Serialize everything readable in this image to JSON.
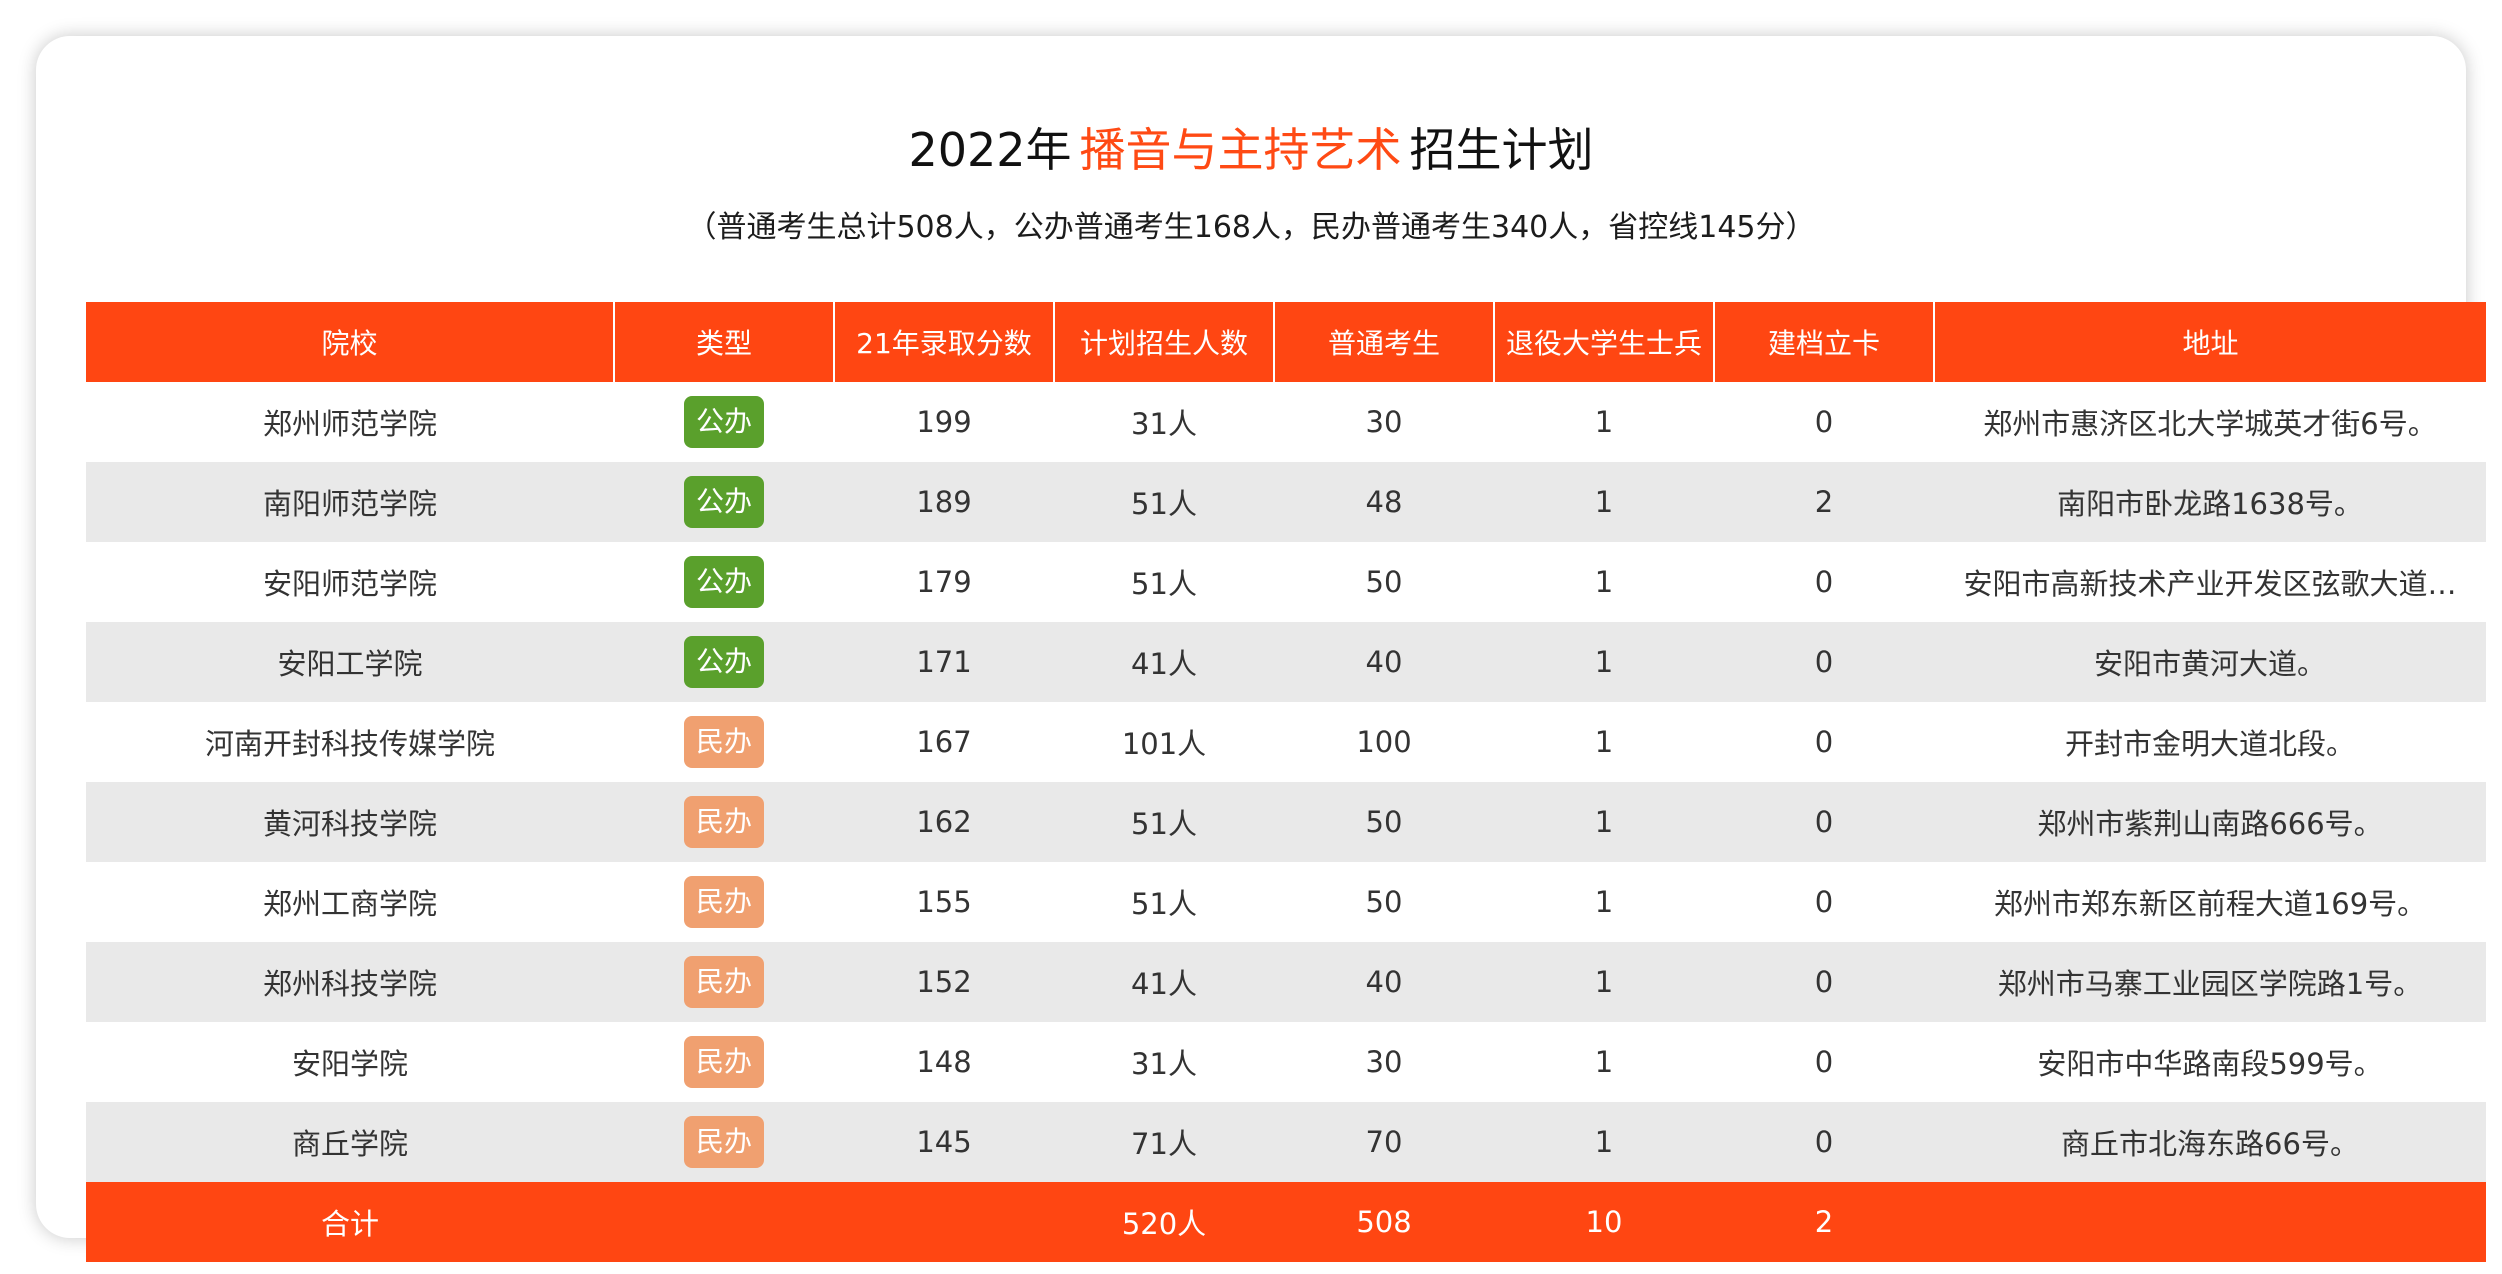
{
  "header": {
    "title_prefix": "2022年",
    "title_highlight": "播音与主持艺术",
    "title_suffix": "招生计划",
    "subtitle": "（普通考生总计508人，公办普通考生168人，民办普通考生340人，省控线145分）"
  },
  "colors": {
    "accent": "#ff4612",
    "public_badge": "#5aa02c",
    "private_badge": "#f0a070",
    "school_link": "#1a1adc"
  },
  "table": {
    "columns": [
      "院校",
      "类型",
      "21年录取分数",
      "计划招生人数",
      "普通考生",
      "退役大学生士兵",
      "建档立卡",
      "地址"
    ],
    "rows": [
      {
        "school": "郑州师范学院",
        "type": "公办",
        "kind": "public",
        "score": "199",
        "plan": "31人",
        "regular": "30",
        "veteran": "1",
        "poverty": "0",
        "address": "郑州市惠济区北大学城英才街6号。"
      },
      {
        "school": "南阳师范学院",
        "type": "公办",
        "kind": "public",
        "score": "189",
        "plan": "51人",
        "regular": "48",
        "veteran": "1",
        "poverty": "2",
        "address": "南阳市卧龙路1638号。"
      },
      {
        "school": "安阳师范学院",
        "type": "公办",
        "kind": "public",
        "score": "179",
        "plan": "51人",
        "regular": "50",
        "veteran": "1",
        "poverty": "0",
        "address": "安阳市高新技术产业开发区弦歌大道…"
      },
      {
        "school": "安阳工学院",
        "type": "公办",
        "kind": "public",
        "score": "171",
        "plan": "41人",
        "regular": "40",
        "veteran": "1",
        "poverty": "0",
        "address": "安阳市黄河大道。"
      },
      {
        "school": "河南开封科技传媒学院",
        "type": "民办",
        "kind": "private",
        "score": "167",
        "plan": "101人",
        "regular": "100",
        "veteran": "1",
        "poverty": "0",
        "address": "开封市金明大道北段。"
      },
      {
        "school": "黄河科技学院",
        "type": "民办",
        "kind": "private",
        "score": "162",
        "plan": "51人",
        "regular": "50",
        "veteran": "1",
        "poverty": "0",
        "address": "郑州市紫荆山南路666号。"
      },
      {
        "school": "郑州工商学院",
        "type": "民办",
        "kind": "private",
        "score": "155",
        "plan": "51人",
        "regular": "50",
        "veteran": "1",
        "poverty": "0",
        "address": "郑州市郑东新区前程大道169号。"
      },
      {
        "school": "郑州科技学院",
        "type": "民办",
        "kind": "private",
        "score": "152",
        "plan": "41人",
        "regular": "40",
        "veteran": "1",
        "poverty": "0",
        "address": "郑州市马寨工业园区学院路1号。"
      },
      {
        "school": "安阳学院",
        "type": "民办",
        "kind": "private",
        "score": "148",
        "plan": "31人",
        "regular": "30",
        "veteran": "1",
        "poverty": "0",
        "address": "安阳市中华路南段599号。"
      },
      {
        "school": "商丘学院",
        "type": "民办",
        "kind": "private",
        "score": "145",
        "plan": "71人",
        "regular": "70",
        "veteran": "1",
        "poverty": "0",
        "address": "商丘市北海东路66号。"
      }
    ],
    "total": {
      "label": "合计",
      "plan": "520人",
      "regular": "508",
      "veteran": "10",
      "poverty": "2"
    }
  }
}
